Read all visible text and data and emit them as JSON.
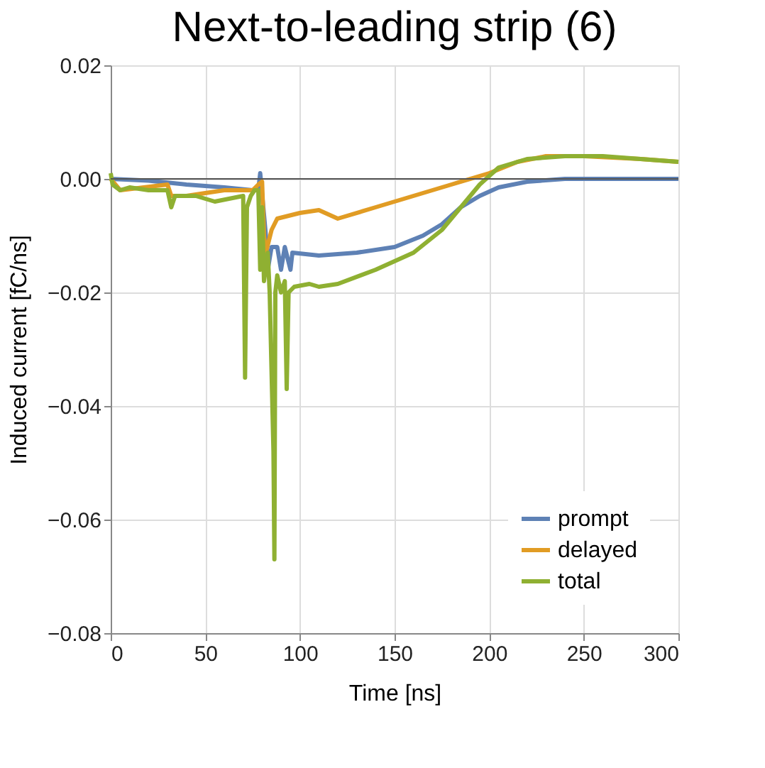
{
  "chart_data": {
    "type": "line",
    "title": "Next-to-leading strip (6)",
    "xlabel": "Time [ns]",
    "ylabel": "Induced current [fC/ns]",
    "series": [
      {
        "name": "prompt",
        "color": "#5e81b5",
        "x": [
          0,
          20,
          40,
          60,
          75,
          78,
          79,
          82,
          83,
          85,
          88,
          90,
          92,
          95,
          96,
          110,
          130,
          150,
          165,
          175,
          185,
          195,
          205,
          220,
          240,
          300
        ],
        "values": [
          0,
          -0.0003,
          -0.001,
          -0.0015,
          -0.002,
          -0.002,
          0.001,
          -0.01,
          -0.016,
          -0.012,
          -0.012,
          -0.016,
          -0.012,
          -0.016,
          -0.013,
          -0.0135,
          -0.013,
          -0.012,
          -0.01,
          -0.008,
          -0.005,
          -0.003,
          -0.0015,
          -0.0005,
          0,
          0
        ]
      },
      {
        "name": "delayed",
        "color": "#e19c24",
        "x": [
          0,
          5,
          30,
          32,
          40,
          60,
          75,
          78,
          80,
          81,
          82,
          85,
          88,
          100,
          110,
          120,
          140,
          160,
          180,
          200,
          215,
          230,
          250,
          280,
          300
        ],
        "values": [
          0,
          -0.002,
          -0.001,
          -0.003,
          -0.003,
          -0.002,
          -0.002,
          -0.001,
          -0.0005,
          -0.01,
          -0.013,
          -0.009,
          -0.007,
          -0.006,
          -0.0055,
          -0.007,
          -0.005,
          -0.003,
          -0.001,
          0.001,
          0.003,
          0.004,
          0.004,
          0.0035,
          0.003
        ]
      },
      {
        "name": "total",
        "color": "#8fb032",
        "x": [
          0,
          1,
          5,
          10,
          20,
          30,
          32,
          34,
          45,
          55,
          70,
          71,
          72,
          74,
          76,
          78,
          79,
          80,
          81,
          83,
          84,
          86,
          86.5,
          87,
          88,
          90,
          92,
          93,
          94,
          97,
          105,
          110,
          120,
          140,
          160,
          175,
          185,
          195,
          205,
          220,
          240,
          260,
          280,
          300
        ],
        "values": [
          0.001,
          -0.001,
          -0.002,
          -0.0015,
          -0.002,
          -0.002,
          -0.005,
          -0.003,
          -0.003,
          -0.004,
          -0.003,
          -0.035,
          -0.005,
          -0.003,
          -0.002,
          -0.002,
          -0.016,
          -0.005,
          -0.018,
          -0.013,
          -0.02,
          -0.048,
          -0.067,
          -0.02,
          -0.017,
          -0.02,
          -0.018,
          -0.037,
          -0.02,
          -0.019,
          -0.0185,
          -0.019,
          -0.0185,
          -0.016,
          -0.013,
          -0.009,
          -0.005,
          -0.001,
          0.002,
          0.0035,
          0.004,
          0.004,
          0.0035,
          0.003
        ]
      }
    ],
    "xlim": [
      0,
      300
    ],
    "xticks": [
      0,
      50,
      100,
      150,
      200,
      250,
      300
    ],
    "ylim": [
      -0.08,
      0.02
    ],
    "yticks": [
      {
        "value": -0.08,
        "label": "−0.08"
      },
      {
        "value": -0.06,
        "label": "−0.06"
      },
      {
        "value": -0.04,
        "label": "−0.04"
      },
      {
        "value": -0.02,
        "label": "−0.02"
      },
      {
        "value": 0,
        "label": "0.00"
      },
      0.02
    ],
    "ref_lines": [
      {
        "axis": "y",
        "value": 0,
        "color": "#555555"
      }
    ],
    "grid": true,
    "legend": "bottom right",
    "marker": "none",
    "line_style": "solid"
  }
}
